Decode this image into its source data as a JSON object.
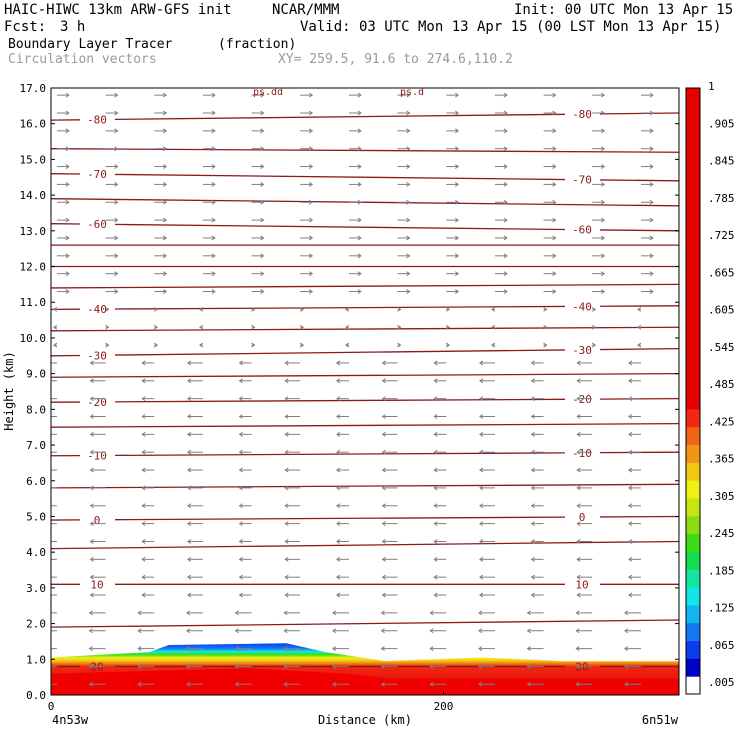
{
  "header": {
    "model": "HAIC-HIWC 13km ARW-GFS init",
    "org": "NCAR/MMM",
    "init": "Init: 00 UTC Mon 13 Apr 15",
    "fcst_label": "Fcst:",
    "fcst_value": "3 h",
    "valid": "Valid: 03 UTC Mon 13 Apr 15 (00 LST Mon 13 Apr 15)",
    "field1": "Boundary Layer Tracer",
    "field1_units": "(fraction)",
    "field2": "Circulation vectors",
    "xy": "XY= 259.5, 91.6 to 274.6,110.2"
  },
  "chart_data": {
    "type": "heatmap",
    "ylabel": "Height (km)",
    "xlabel": "Distance (km)",
    "x_left_label": "4n53w",
    "x_right_label": "6n51w",
    "xlim": [
      0,
      320
    ],
    "ylim": [
      0,
      17
    ],
    "xticks": [
      "0",
      "200"
    ],
    "xtick_values": [
      0,
      200
    ],
    "yticks": [
      "0.0",
      "1.0",
      "2.0",
      "3.0",
      "4.0",
      "5.0",
      "6.0",
      "7.0",
      "8.0",
      "9.0",
      "10.0",
      "11.0",
      "12.0",
      "13.0",
      "14.0",
      "15.0",
      "16.0",
      "17.0"
    ],
    "top_labels": [
      "ps.dd",
      "ps.d"
    ],
    "isotherms": [
      {
        "label": "-80",
        "y_left": 16.1,
        "y_right": 16.3
      },
      {
        "label": "",
        "y_left": 15.3,
        "y_right": 15.2
      },
      {
        "label": "-70",
        "y_left": 14.6,
        "y_right": 14.4
      },
      {
        "label": "",
        "y_left": 13.9,
        "y_right": 13.7
      },
      {
        "label": "-60",
        "y_left": 13.2,
        "y_right": 13.0
      },
      {
        "label": "",
        "y_left": 12.6,
        "y_right": 12.6
      },
      {
        "label": "",
        "y_left": 12.0,
        "y_right": 12.0
      },
      {
        "label": "",
        "y_left": 11.4,
        "y_right": 11.5
      },
      {
        "label": "-40",
        "y_left": 10.8,
        "y_right": 10.9
      },
      {
        "label": "",
        "y_left": 10.2,
        "y_right": 10.3
      },
      {
        "label": "-30",
        "y_left": 9.5,
        "y_right": 9.7
      },
      {
        "label": "",
        "y_left": 8.9,
        "y_right": 9.0
      },
      {
        "label": "-20",
        "y_left": 8.2,
        "y_right": 8.3
      },
      {
        "label": "",
        "y_left": 7.5,
        "y_right": 7.6
      },
      {
        "label": "-10",
        "y_left": 6.7,
        "y_right": 6.8
      },
      {
        "label": "",
        "y_left": 5.8,
        "y_right": 5.9
      },
      {
        "label": "0",
        "y_left": 4.9,
        "y_right": 5.0
      },
      {
        "label": "",
        "y_left": 4.1,
        "y_right": 4.3
      },
      {
        "label": "10",
        "y_left": 3.1,
        "y_right": 3.1
      },
      {
        "label": "",
        "y_left": 1.9,
        "y_right": 2.1
      },
      {
        "label": "20",
        "y_left": 0.8,
        "y_right": 0.8
      }
    ],
    "tracer_top_km": [
      {
        "x": 0,
        "y": 1.05
      },
      {
        "x": 50,
        "y": 1.2
      },
      {
        "x": 60,
        "y": 1.4
      },
      {
        "x": 120,
        "y": 1.45
      },
      {
        "x": 140,
        "y": 1.2
      },
      {
        "x": 170,
        "y": 0.95
      },
      {
        "x": 220,
        "y": 1.05
      },
      {
        "x": 260,
        "y": 0.95
      },
      {
        "x": 320,
        "y": 0.95
      }
    ],
    "tracer_red_top_km": [
      {
        "x": 0,
        "y": 0.6
      },
      {
        "x": 100,
        "y": 0.75
      },
      {
        "x": 150,
        "y": 0.6
      },
      {
        "x": 175,
        "y": 0.45
      },
      {
        "x": 320,
        "y": 0.45
      }
    ],
    "colorbar": {
      "labels": [
        ".005",
        ".065",
        ".125",
        ".185",
        ".245",
        ".305",
        ".365",
        ".425",
        ".485",
        ".545",
        ".605",
        ".665",
        ".725",
        ".785",
        ".845",
        ".905",
        "1"
      ],
      "colors": [
        "#ffffff",
        "#0000c8",
        "#0a3cf0",
        "#1478f0",
        "#14b4f0",
        "#14e6e6",
        "#14e6a0",
        "#14dc50",
        "#3cdc14",
        "#8cdc14",
        "#c8e614",
        "#f0f014",
        "#f0c814",
        "#f09614",
        "#f06414",
        "#f02814",
        "#e60000",
        "#e60000",
        "#e60000",
        "#e60000",
        "#e60000",
        "#e60000",
        "#e60000",
        "#e60000",
        "#e60000",
        "#e60000",
        "#e60000",
        "#e60000",
        "#e60000",
        "#e60000",
        "#e60000",
        "#e60000",
        "#e60000",
        "#e60000"
      ]
    },
    "colors": {
      "isotherm": "#8b1a1a",
      "vectors": "#7f7f7f",
      "tracer_red": "#f00000"
    }
  }
}
